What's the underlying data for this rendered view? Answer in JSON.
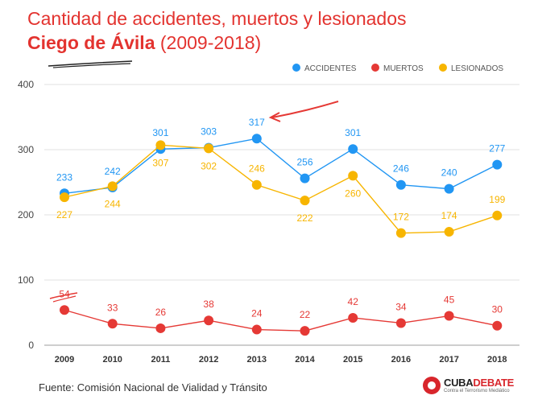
{
  "title_line1": "Cantidad de accidentes, muertos y lesionados",
  "title_place": "Ciego de Ávila",
  "title_years": "(2009-2018)",
  "source": "Fuente: Comisión Nacional de Vialidad y Tránsito",
  "brand": {
    "part1": "CUBA",
    "part2": "DEBATE",
    "tagline": "Contra el Terrorismo Mediático"
  },
  "colors": {
    "accidentes": "#2196f3",
    "muertos": "#e53935",
    "lesionados": "#f7b500",
    "annotation": "#e53935"
  },
  "chart_data": {
    "type": "line",
    "title": "Cantidad de accidentes, muertos y lesionados Ciego de Ávila (2009-2018)",
    "categories": [
      "2009",
      "2010",
      "2011",
      "2012",
      "2013",
      "2014",
      "2015",
      "2016",
      "2017",
      "2018"
    ],
    "ylim": [
      0,
      400
    ],
    "yticks": [
      0,
      100,
      200,
      300,
      400
    ],
    "legend_position": "top-right",
    "series": [
      {
        "name": "ACCIDENTES",
        "color": "#2196f3",
        "values": [
          233,
          242,
          301,
          303,
          317,
          256,
          301,
          246,
          240,
          277
        ],
        "label_pos": [
          "above",
          "above",
          "above",
          "above",
          "above",
          "above",
          "above",
          "above",
          "above",
          "above"
        ]
      },
      {
        "name": "MUERTOS",
        "color": "#e53935",
        "values": [
          54,
          33,
          26,
          38,
          24,
          22,
          42,
          34,
          45,
          30
        ],
        "label_pos": [
          "above",
          "above",
          "above",
          "above",
          "above",
          "above",
          "above",
          "above",
          "above",
          "above"
        ]
      },
      {
        "name": "LESIONADOS",
        "color": "#f7b500",
        "values": [
          227,
          244,
          307,
          302,
          246,
          222,
          260,
          172,
          174,
          199
        ],
        "label_pos": [
          "below",
          "below",
          "below",
          "below",
          "above",
          "below",
          "below",
          "above",
          "above",
          "above"
        ]
      }
    ]
  }
}
